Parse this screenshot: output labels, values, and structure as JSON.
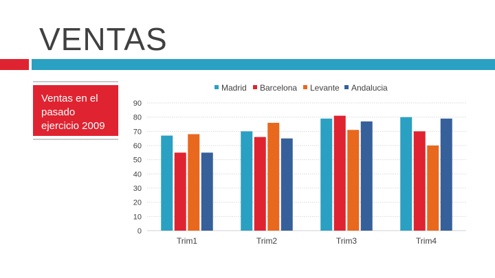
{
  "slide": {
    "title": "VENTAS",
    "subtitle": "Ventas en el pasado ejercicio 2009"
  },
  "colors": {
    "accent_red": "#e02330",
    "accent_teal": "#2aa0c2",
    "sidebar_red": "#e02330",
    "title_text": "#404040",
    "axis_text": "#404040",
    "grid": "#d9d9d9"
  },
  "chart_data": {
    "type": "bar",
    "title": "",
    "xlabel": "",
    "ylabel": "",
    "categories": [
      "Trim1",
      "Trim2",
      "Trim3",
      "Trim4"
    ],
    "ylim": [
      0,
      90
    ],
    "yticks": [
      0,
      10,
      20,
      30,
      40,
      50,
      60,
      70,
      80,
      90
    ],
    "legend_position": "top",
    "grid": true,
    "series": [
      {
        "name": "Madrid",
        "color": "#2aa0c2",
        "values": [
          67,
          70,
          79,
          80
        ]
      },
      {
        "name": "Barcelona",
        "color": "#e02330",
        "values": [
          55,
          66,
          81,
          70
        ]
      },
      {
        "name": "Levante",
        "color": "#e8681e",
        "values": [
          68,
          76,
          71,
          60
        ]
      },
      {
        "name": "Andalucia",
        "color": "#36609a",
        "values": [
          55,
          65,
          77,
          79
        ]
      }
    ]
  }
}
